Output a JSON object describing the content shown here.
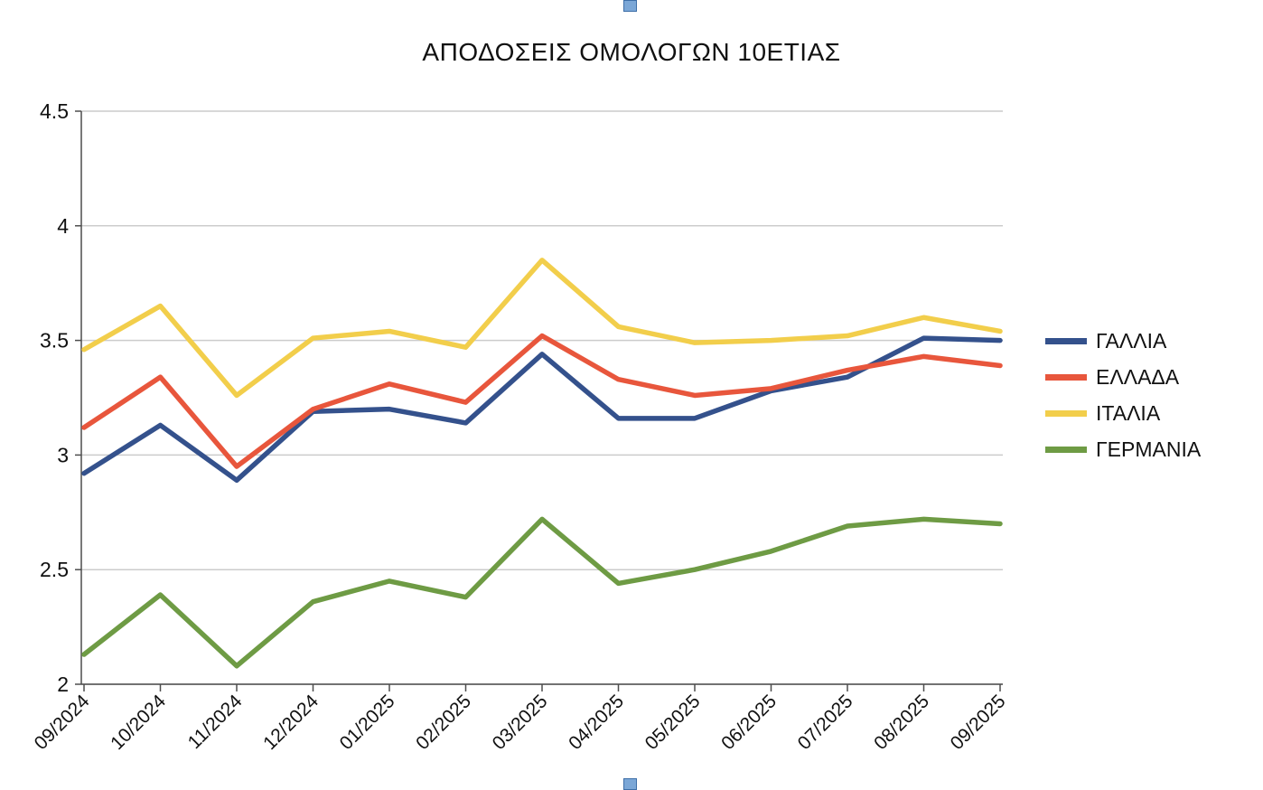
{
  "chart_data": {
    "type": "line",
    "title": "ΑΠΟΔΟΣΕΙΣ ΟΜΟΛΟΓΩΝ 10ΕΤΙΑΣ",
    "categories": [
      "09/2024",
      "10/2024",
      "11/2024",
      "12/2024",
      "01/2025",
      "02/2025",
      "03/2025",
      "04/2025",
      "05/2025",
      "06/2025",
      "07/2025",
      "08/2025",
      "09/2025"
    ],
    "series": [
      {
        "name": "ΓΑΛΛΙΑ",
        "color": "#34518C",
        "values": [
          2.92,
          3.13,
          2.89,
          3.19,
          3.2,
          3.14,
          3.44,
          3.16,
          3.16,
          3.28,
          3.34,
          3.51,
          3.5
        ]
      },
      {
        "name": "ΕΛΛΑΔΑ",
        "color": "#E8563C",
        "values": [
          3.12,
          3.34,
          2.95,
          3.2,
          3.31,
          3.23,
          3.52,
          3.33,
          3.26,
          3.29,
          3.37,
          3.43,
          3.39
        ]
      },
      {
        "name": "ΙΤΑΛΙΑ",
        "color": "#F2CE4B",
        "values": [
          3.46,
          3.65,
          3.26,
          3.51,
          3.54,
          3.47,
          3.85,
          3.56,
          3.49,
          3.5,
          3.52,
          3.6,
          3.54
        ]
      },
      {
        "name": "ΓΕΡΜΑΝΙΑ",
        "color": "#6E9B44",
        "values": [
          2.13,
          2.39,
          2.08,
          2.36,
          2.45,
          2.38,
          2.72,
          2.44,
          2.5,
          2.58,
          2.69,
          2.72,
          2.7
        ]
      }
    ],
    "xlabel": "",
    "ylabel": "",
    "ylim": [
      2,
      4.5
    ],
    "yticks": [
      2,
      2.5,
      3,
      3.5,
      4,
      4.5
    ],
    "grid": true,
    "legend_position": "right"
  },
  "ui": {
    "selection_handle_color": "#7BA7D7",
    "axis_color": "#4d4d4d",
    "grid_color": "#cccccc"
  }
}
